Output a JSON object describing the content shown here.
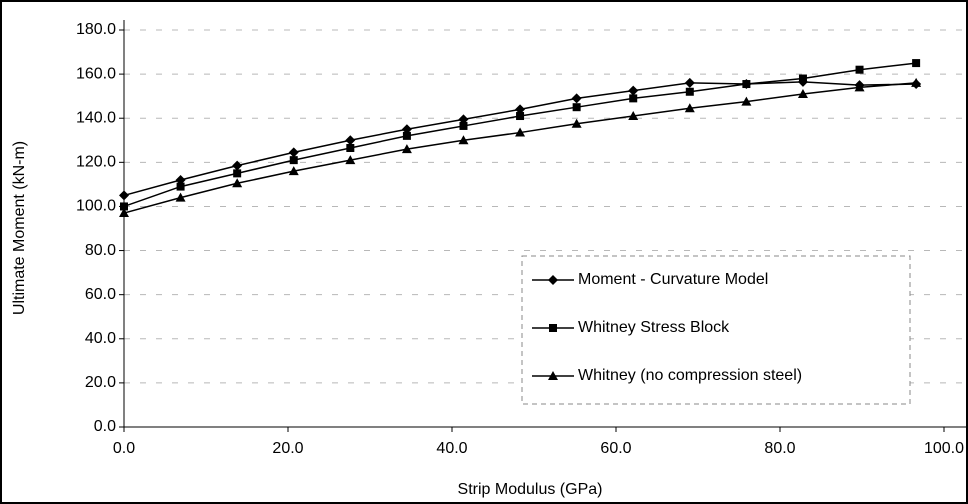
{
  "chart_data": {
    "type": "line",
    "xlabel": "Strip Modulus (GPa)",
    "ylabel": "Ultimate Moment (kN-m)",
    "x": [
      0,
      6.9,
      13.8,
      20.7,
      27.6,
      34.5,
      41.4,
      48.3,
      55.2,
      62.1,
      69,
      75.9,
      82.8,
      89.7,
      96.6
    ],
    "series": [
      {
        "name": "Moment - Curvature Model",
        "color": "#000000",
        "marker": "diamond",
        "values": [
          105,
          112,
          118.5,
          124.5,
          130,
          135,
          139.5,
          144,
          149,
          152.5,
          156,
          155.5,
          156.5,
          155,
          155.5
        ]
      },
      {
        "name": "Whitney Stress Block",
        "color": "#000000",
        "marker": "square",
        "values": [
          100,
          109,
          115,
          121,
          126.5,
          132,
          136.5,
          141,
          145,
          149,
          152,
          155.5,
          158,
          162,
          165
        ]
      },
      {
        "name": "Whitney (no compression steel)",
        "color": "#000000",
        "marker": "triangle",
        "values": [
          97,
          104,
          110.5,
          116,
          121,
          126,
          130,
          133.5,
          137.5,
          141,
          144.5,
          147.5,
          151,
          154,
          156
        ]
      }
    ],
    "xlim": [
      0,
      100
    ],
    "xticks": [
      {
        "value": 0,
        "label": "0.0"
      },
      {
        "value": 20,
        "label": "20.0"
      },
      {
        "value": 40,
        "label": "40.0"
      },
      {
        "value": 60,
        "label": "60.0"
      },
      {
        "value": 80,
        "label": "80.0"
      },
      {
        "value": 100,
        "label": "100.0"
      }
    ],
    "ylim": [
      0,
      180
    ],
    "yticks": [
      {
        "value": 0,
        "label": "0.0"
      },
      {
        "value": 20,
        "label": "20.0"
      },
      {
        "value": 40,
        "label": "40.0"
      },
      {
        "value": 60,
        "label": "60.0"
      },
      {
        "value": 80,
        "label": "80.0"
      },
      {
        "value": 100,
        "label": "100.0"
      },
      {
        "value": 120,
        "label": "120.0"
      },
      {
        "value": 140,
        "label": "140.0"
      },
      {
        "value": 160,
        "label": "160.0"
      },
      {
        "value": 180,
        "label": "180.0"
      }
    ],
    "grid": true,
    "legend": "lower right"
  }
}
